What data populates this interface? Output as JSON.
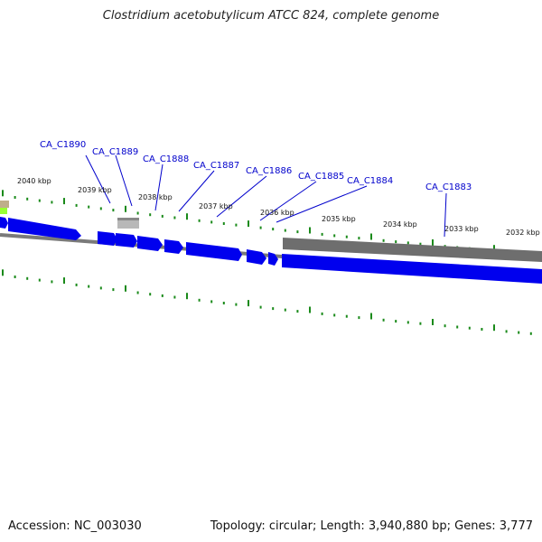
{
  "title": "Clostridium acetobutylicum ATCC 824, complete genome",
  "accession": "Accession: NC_003030",
  "summary": "Topology: circular; Length: 3,940,880 bp; Genes: 3,777",
  "colors": {
    "cds_forward": "#0000ee",
    "backbone": "#888888",
    "tick": "#1a8a1a",
    "label": "#0000cc",
    "pseudo": "#b8b8b8",
    "highlight": "#99ff33"
  },
  "kbp_ticks": [
    "2040 kbp",
    "2039 kbp",
    "2038 kbp",
    "2037 kbp",
    "2036 kbp",
    "2035 kbp",
    "2034 kbp",
    "2033 kbp",
    "2032 kbp"
  ],
  "gene_labels": [
    "CA_C1890",
    "CA_C1889",
    "CA_C1888",
    "CA_C1887",
    "CA_C1886",
    "CA_C1885",
    "CA_C1884",
    "CA_C1883"
  ]
}
